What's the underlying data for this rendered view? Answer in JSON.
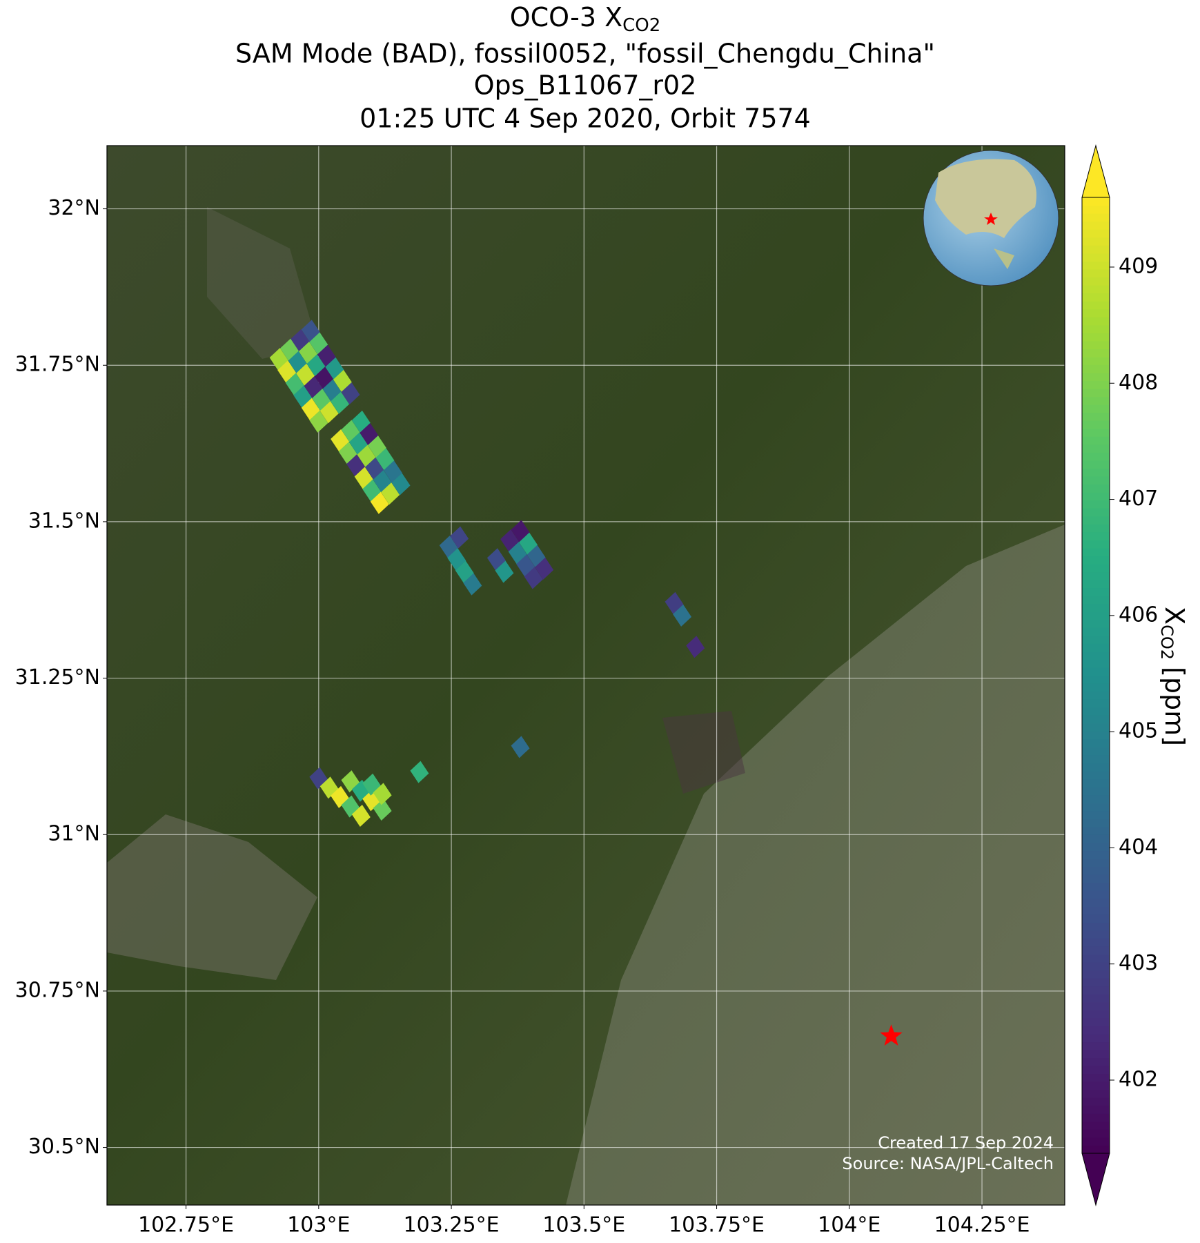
{
  "chart_data": {
    "type": "map",
    "title": "OCO-3 X",
    "title_subscript": "CO2",
    "subtitle": [
      "SAM Mode (BAD), fossil0052, \"fossil_Chengdu_China\"",
      "Ops_B11067_r02",
      "01:25 UTC 4 Sep 2020, Orbit 7574"
    ],
    "xlim": [
      102.601,
      104.406
    ],
    "ylim": [
      30.408,
      32.101
    ],
    "xticks": [
      {
        "value": 102.75,
        "label": "102.75°E"
      },
      {
        "value": 103,
        "label": "103°E"
      },
      {
        "value": 103.25,
        "label": "103.25°E"
      },
      {
        "value": 103.5,
        "label": "103.5°E"
      },
      {
        "value": 103.75,
        "label": "103.75°E"
      },
      {
        "value": 104,
        "label": "104°E"
      },
      {
        "value": 104.25,
        "label": "104.25°E"
      }
    ],
    "yticks": [
      {
        "value": 30.5,
        "label": "30.5°N"
      },
      {
        "value": 30.75,
        "label": "30.75°N"
      },
      {
        "value": 31,
        "label": "31°N"
      },
      {
        "value": 31.25,
        "label": "31.25°N"
      },
      {
        "value": 31.5,
        "label": "31.5°N"
      },
      {
        "value": 31.75,
        "label": "31.75°N"
      },
      {
        "value": 32,
        "label": "32°N"
      }
    ],
    "grid": true,
    "colormap": "viridis",
    "clim": [
      401.37,
      409.6
    ],
    "colorbar_ticks": [
      402,
      403,
      404,
      405,
      406,
      407,
      408,
      409
    ],
    "colorbar_label": "X",
    "colorbar_label_subscript": "CO2",
    "colorbar_label_unit": "[ppm]",
    "target": {
      "x": 104.079,
      "y": 30.678,
      "color": "#ff0000"
    },
    "series": [
      {
        "x": [
          102.925,
          102.94,
          102.955,
          102.97,
          102.985,
          103.0,
          102.945,
          102.96,
          102.975,
          102.99,
          103.005,
          103.02,
          102.965,
          102.98,
          102.995,
          103.01,
          103.025,
          103.04,
          102.985,
          103.0,
          103.015,
          103.03,
          103.045,
          103.06,
          103.04,
          103.055,
          103.07,
          103.085,
          103.1,
          103.115,
          103.06,
          103.075,
          103.09,
          103.105,
          103.12,
          103.135,
          103.08,
          103.095,
          103.11,
          103.125,
          103.14,
          103.155,
          103.245,
          103.26,
          103.275,
          103.29,
          103.265,
          103.36,
          103.375,
          103.39,
          103.405,
          103.38,
          103.395,
          103.41,
          103.425,
          103.335,
          103.35,
          103.67,
          103.685,
          103.71,
          103.38,
          103.0,
          103.02,
          103.04,
          103.06,
          103.08,
          103.06,
          103.08,
          103.1,
          103.12,
          103.1,
          103.12,
          103.19
        ],
        "y": [
          31.76,
          31.74,
          31.72,
          31.7,
          31.68,
          31.66,
          31.775,
          31.755,
          31.735,
          31.715,
          31.695,
          31.675,
          31.79,
          31.77,
          31.75,
          31.73,
          31.71,
          31.69,
          31.805,
          31.785,
          31.765,
          31.745,
          31.725,
          31.705,
          31.63,
          31.61,
          31.59,
          31.57,
          31.55,
          31.53,
          31.645,
          31.625,
          31.605,
          31.585,
          31.565,
          31.545,
          31.66,
          31.64,
          31.62,
          31.6,
          31.58,
          31.56,
          31.46,
          31.44,
          31.42,
          31.4,
          31.475,
          31.47,
          31.45,
          31.43,
          31.41,
          31.485,
          31.465,
          31.445,
          31.425,
          31.44,
          31.42,
          31.37,
          31.35,
          31.3,
          31.14,
          31.09,
          31.075,
          31.06,
          31.045,
          31.03,
          31.085,
          31.07,
          31.055,
          31.04,
          31.08,
          31.065,
          31.1
        ],
        "values": [
          408.5,
          409.2,
          407.1,
          406.0,
          409.4,
          408.2,
          407.8,
          405.5,
          408.9,
          402.3,
          407.5,
          409.0,
          402.8,
          408.1,
          406.3,
          401.8,
          404.9,
          406.8,
          403.5,
          407.4,
          402.1,
          405.8,
          408.6,
          403.0,
          409.3,
          408.0,
          402.5,
          409.1,
          407.0,
          409.5,
          407.6,
          406.2,
          408.4,
          403.2,
          405.1,
          408.8,
          406.5,
          402.0,
          407.9,
          406.9,
          404.6,
          405.3,
          404.2,
          405.6,
          406.1,
          404.8,
          403.1,
          402.2,
          405.0,
          403.6,
          402.8,
          401.9,
          406.3,
          404.1,
          402.5,
          403.3,
          405.7,
          402.9,
          404.5,
          402.4,
          404.3,
          403.0,
          408.8,
          409.4,
          407.3,
          409.1,
          408.2,
          406.5,
          409.3,
          407.7,
          406.9,
          408.5,
          406.7
        ]
      }
    ],
    "credits": [
      "Created 17 Sep 2024",
      "Source: NASA/JPL-Caltech"
    ]
  }
}
